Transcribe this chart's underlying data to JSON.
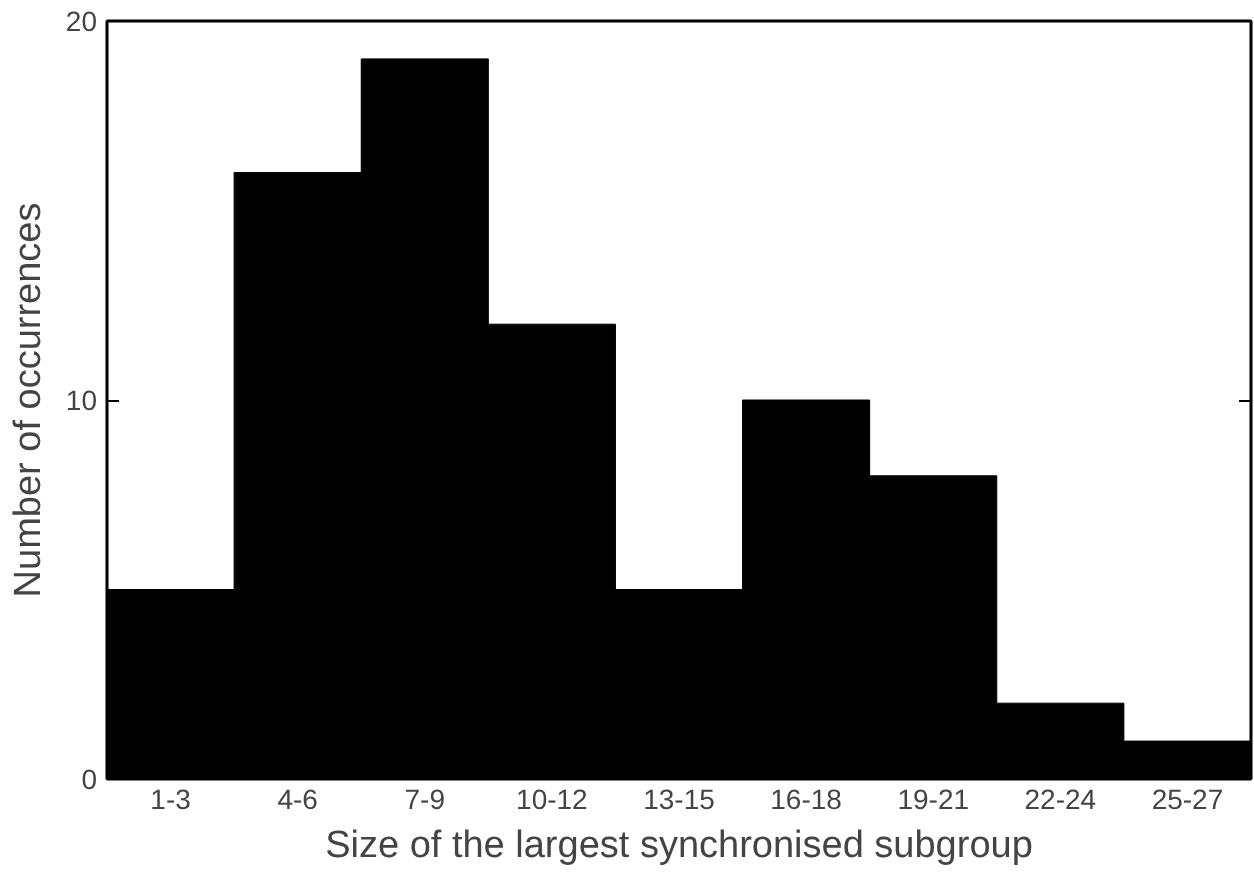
{
  "chart_data": {
    "type": "bar",
    "xlabel": "Size of the largest synchronised subgroup",
    "ylabel": "Number of occurrences",
    "categories": [
      "1-3",
      "4-6",
      "7-9",
      "10-12",
      "13-15",
      "16-18",
      "19-21",
      "22-24",
      "25-27"
    ],
    "values": [
      5,
      16,
      19,
      12,
      5,
      10,
      8,
      2,
      1
    ],
    "color": "#000000",
    "ylim": [
      0,
      20
    ],
    "yticks": [
      0,
      10,
      20
    ],
    "grid": false
  }
}
